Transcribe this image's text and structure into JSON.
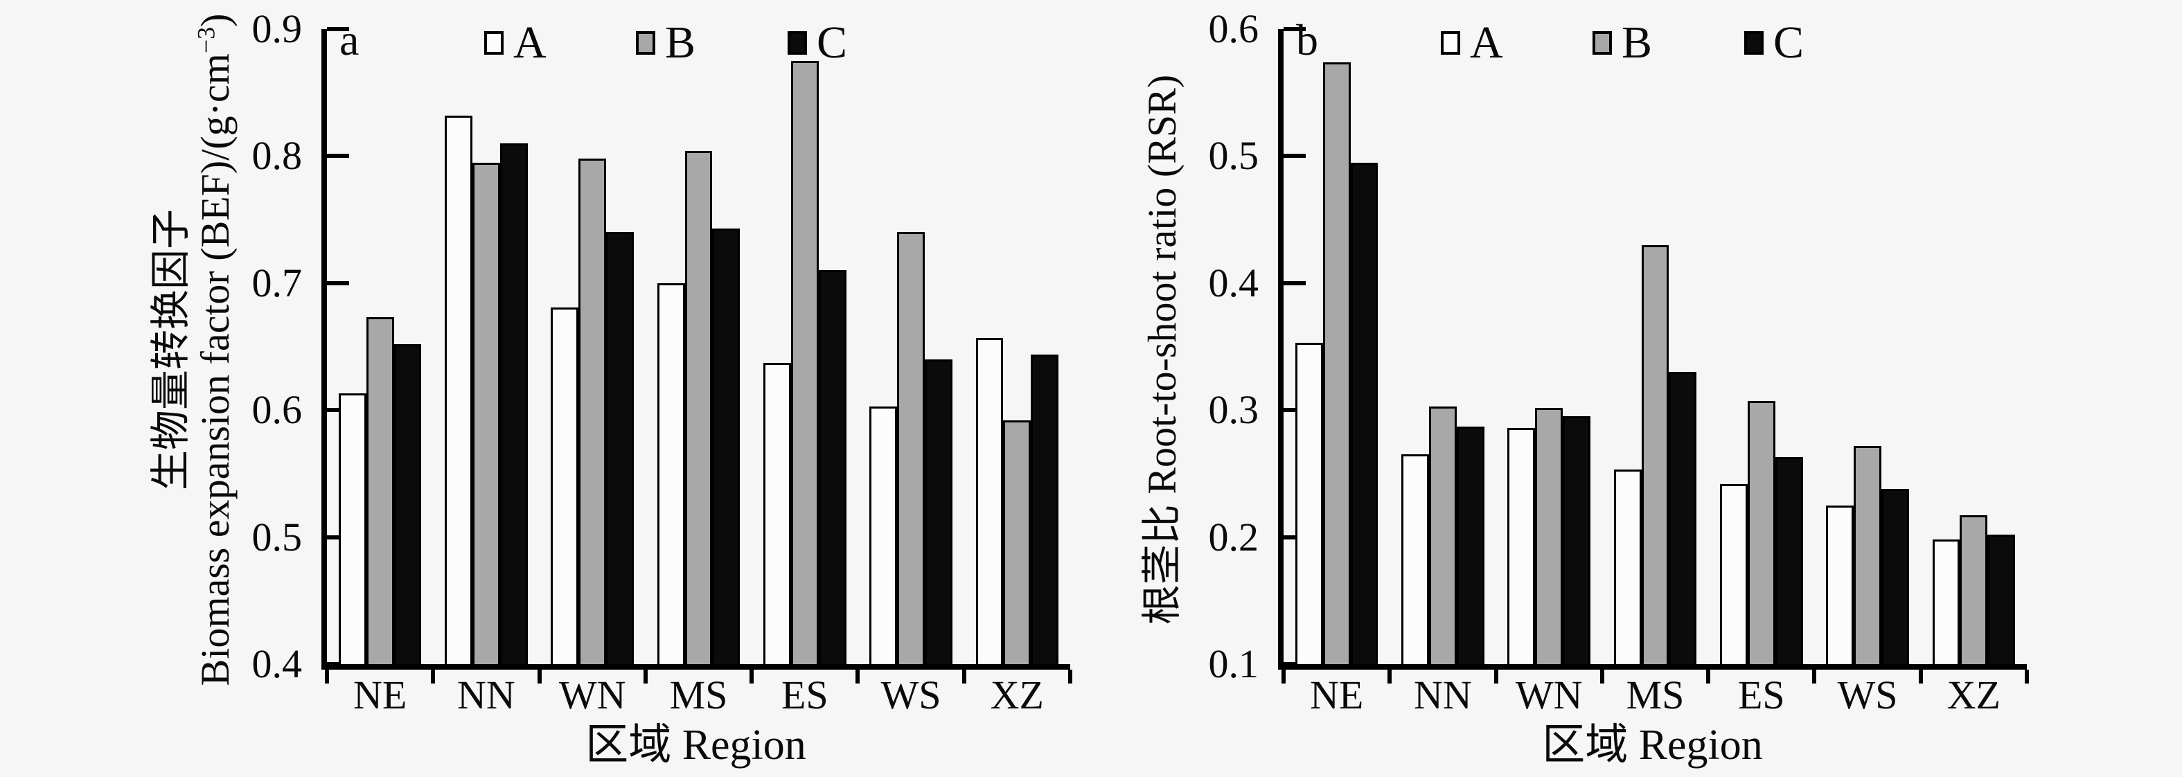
{
  "legend": {
    "items": [
      {
        "label": "A",
        "color": "#fcfcfc"
      },
      {
        "label": "B",
        "color": "#a8a8a8"
      },
      {
        "label": "C",
        "color": "#0b0b0b"
      }
    ]
  },
  "colors": {
    "background": "#f6f6f6",
    "axis": "#000000",
    "bar_outline": "#000000",
    "series_A": "#fcfcfc",
    "series_B": "#a8a8a8",
    "series_C": "#0b0b0b"
  },
  "chart_data": [
    {
      "type": "bar",
      "panel_label": "a",
      "ylabel_line1": "生物量转换因子",
      "ylabel_line2_main": "Biomass expansion factor (BEF)/(g·cm",
      "ylabel_line2_sup": "−3",
      "ylabel_line2_end": ")",
      "xlabel": "区域 Region",
      "categories": [
        "NE",
        "NN",
        "WN",
        "MS",
        "ES",
        "WS",
        "XZ"
      ],
      "ylim": [
        0.4,
        0.9
      ],
      "yticks": [
        0.4,
        0.5,
        0.6,
        0.7,
        0.8,
        0.9
      ],
      "grid": false,
      "legend_position": "top-inside",
      "series": [
        {
          "name": "A",
          "color": "#fcfcfc",
          "values": [
            0.613,
            0.832,
            0.681,
            0.7,
            0.637,
            0.603,
            0.657
          ]
        },
        {
          "name": "B",
          "color": "#a8a8a8",
          "values": [
            0.673,
            0.795,
            0.798,
            0.804,
            0.875,
            0.74,
            0.592
          ]
        },
        {
          "name": "C",
          "color": "#0b0b0b",
          "values": [
            0.652,
            0.81,
            0.74,
            0.743,
            0.71,
            0.64,
            0.644
          ]
        }
      ]
    },
    {
      "type": "bar",
      "panel_label": "b",
      "ylabel_line1": "根茎比 Root-to-shoot ratio (RSR)",
      "xlabel": "区域 Region",
      "categories": [
        "NE",
        "NN",
        "WN",
        "MS",
        "ES",
        "WS",
        "XZ"
      ],
      "ylim": [
        0.1,
        0.6
      ],
      "yticks": [
        0.1,
        0.2,
        0.3,
        0.4,
        0.5,
        0.6
      ],
      "grid": false,
      "legend_position": "top-inside",
      "series": [
        {
          "name": "A",
          "color": "#fcfcfc",
          "values": [
            0.353,
            0.265,
            0.286,
            0.253,
            0.242,
            0.225,
            0.198
          ]
        },
        {
          "name": "B",
          "color": "#a8a8a8",
          "values": [
            0.574,
            0.303,
            0.302,
            0.43,
            0.307,
            0.272,
            0.217
          ]
        },
        {
          "name": "C",
          "color": "#0b0b0b",
          "values": [
            0.495,
            0.287,
            0.295,
            0.33,
            0.263,
            0.238,
            0.202
          ]
        }
      ]
    }
  ]
}
